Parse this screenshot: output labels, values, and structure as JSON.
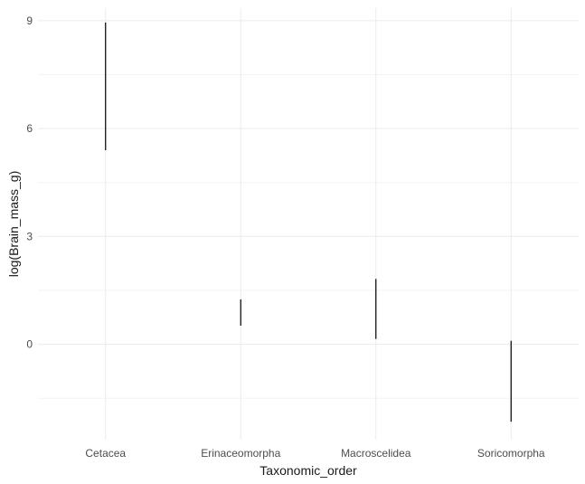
{
  "chart_data": {
    "type": "linerange",
    "categories": [
      "Cetacea",
      "Erinaceomorpha",
      "Macroscelidea",
      "Soricomorpha"
    ],
    "series": [
      {
        "values": [
          {
            "category": "Cetacea",
            "ymin": 5.4,
            "ymax": 8.95
          },
          {
            "category": "Erinaceomorpha",
            "ymin": 0.52,
            "ymax": 1.25
          },
          {
            "category": "Macroscelidea",
            "ymin": 0.15,
            "ymax": 1.82
          },
          {
            "category": "Soricomorpha",
            "ymin": -2.15,
            "ymax": 0.1
          }
        ]
      }
    ],
    "xlabel": "Taxonomic_order",
    "ylabel": "log(Brain_mass_g)",
    "ylim": [
      -2.65,
      9.35
    ],
    "yticks": [
      0,
      3,
      6,
      9
    ],
    "ytick_labels": [
      "0",
      "3",
      "6",
      "9"
    ],
    "grid": true,
    "background": "#ffffff",
    "grid_color": "#ebebeb",
    "line_color": "#000000"
  }
}
